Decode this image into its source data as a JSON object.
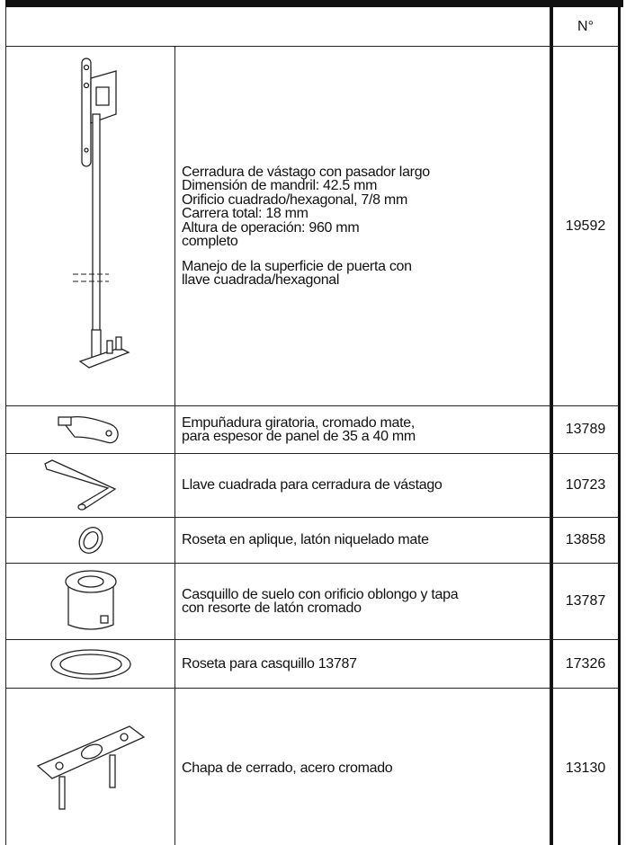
{
  "header": {
    "number": "N°"
  },
  "rows": [
    {
      "description": [
        "Cerradura de vástago con pasador largo",
        "Dimensión de mandril: 42.5 mm",
        "Orificio cuadrado/hexagonal, 7/8 mm",
        "Carrera total: 18 mm",
        "Altura de operación: 960 mm",
        "completo"
      ],
      "note": [
        "Manejo de la superficie de puerta con",
        "llave cuadrada/hexagonal"
      ],
      "number": "19592"
    },
    {
      "description": [
        "Empuñadura giratoria, cromado mate,",
        "para espesor de panel de 35 a 40 mm"
      ],
      "number": "13789"
    },
    {
      "description": [
        "Llave cuadrada para cerradura de vástago"
      ],
      "number": "10723"
    },
    {
      "description": [
        "Roseta en aplique, latón niquelado mate"
      ],
      "number": "13858"
    },
    {
      "description": [
        "Casquillo de suelo con orificio oblongo y tapa",
        "con resorte de latón cromado"
      ],
      "number": "13787"
    },
    {
      "description": [
        "Roseta para casquillo 13787"
      ],
      "number": "17326"
    },
    {
      "description": [
        "Chapa de cerrado, acero cromado"
      ],
      "number": "13130"
    }
  ]
}
